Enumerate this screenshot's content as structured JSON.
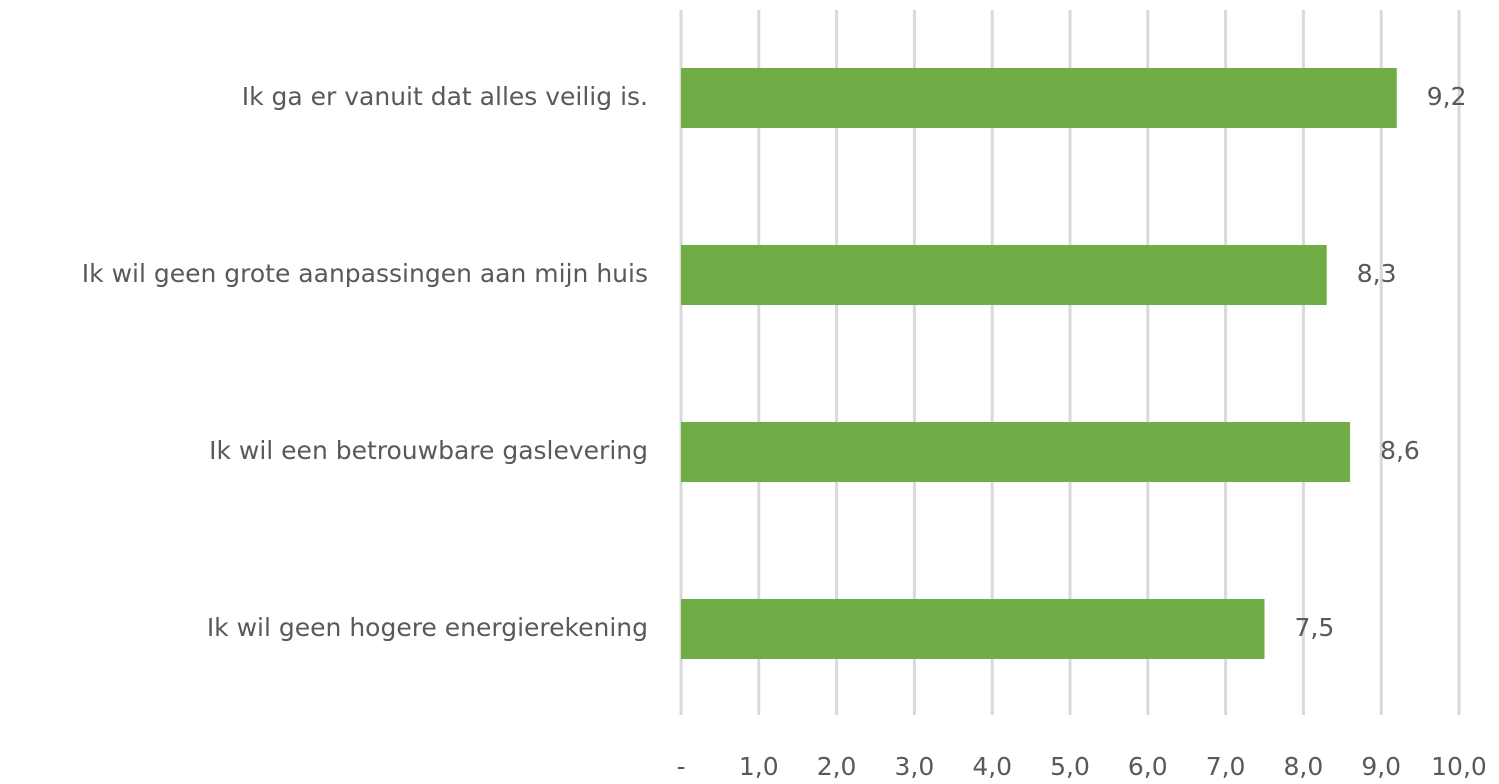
{
  "chart_data": {
    "type": "barh",
    "categories": [
      "Ik ga er vanuit dat alles veilig is.",
      "Ik wil geen grote aanpassingen aan mijn huis",
      "Ik wil een betrouwbare gaslevering",
      "Ik wil geen hogere energierekening"
    ],
    "values": [
      9.2,
      8.3,
      8.6,
      7.5
    ],
    "value_labels": [
      "9,2",
      "8,3",
      "8,6",
      "7,5"
    ],
    "color": "#70ad47",
    "xlim": [
      0,
      10
    ],
    "xticks": [
      {
        "value": 0,
        "label": "-"
      },
      {
        "value": 1,
        "label": "1,0"
      },
      {
        "value": 2,
        "label": "2,0"
      },
      {
        "value": 3,
        "label": "3,0"
      },
      {
        "value": 4,
        "label": "4,0"
      },
      {
        "value": 5,
        "label": "5,0"
      },
      {
        "value": 6,
        "label": "6,0"
      },
      {
        "value": 7,
        "label": "7,0"
      },
      {
        "value": 8,
        "label": "8,0"
      },
      {
        "value": 9,
        "label": "9,0"
      },
      {
        "value": 10,
        "label": "10,0"
      }
    ],
    "grid": true
  }
}
